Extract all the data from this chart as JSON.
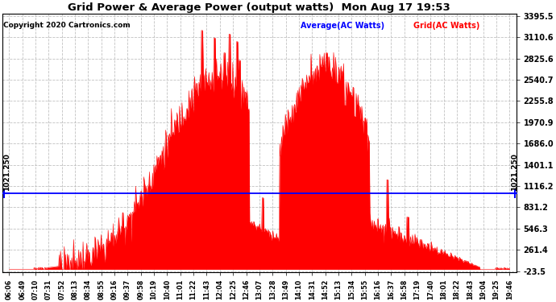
{
  "title": "Grid Power & Average Power (output watts)  Mon Aug 17 19:53",
  "copyright": "Copyright 2020 Cartronics.com",
  "legend_avg": "Average(AC Watts)",
  "legend_grid": "Grid(AC Watts)",
  "avg_value": 1021.25,
  "avg_label": "1021.250",
  "yticks": [
    3395.5,
    3110.6,
    2825.6,
    2540.7,
    2255.8,
    1970.9,
    1686.0,
    1401.1,
    1116.2,
    831.2,
    546.3,
    261.4,
    -23.5
  ],
  "ymin": -23.5,
  "ymax": 3395.5,
  "fill_color": "red",
  "avg_line_color": "blue",
  "grid_color": "#bbbbbb",
  "bg_color": "white",
  "xtick_labels": [
    "06:06",
    "06:49",
    "07:10",
    "07:31",
    "07:52",
    "08:13",
    "08:34",
    "08:55",
    "09:16",
    "09:37",
    "09:58",
    "10:19",
    "10:40",
    "11:01",
    "11:22",
    "11:43",
    "12:04",
    "12:25",
    "12:46",
    "13:07",
    "13:28",
    "13:49",
    "14:10",
    "14:31",
    "14:52",
    "15:13",
    "15:34",
    "15:55",
    "16:16",
    "16:37",
    "16:58",
    "17:19",
    "17:40",
    "18:01",
    "18:22",
    "18:43",
    "19:04",
    "19:25",
    "19:46"
  ]
}
